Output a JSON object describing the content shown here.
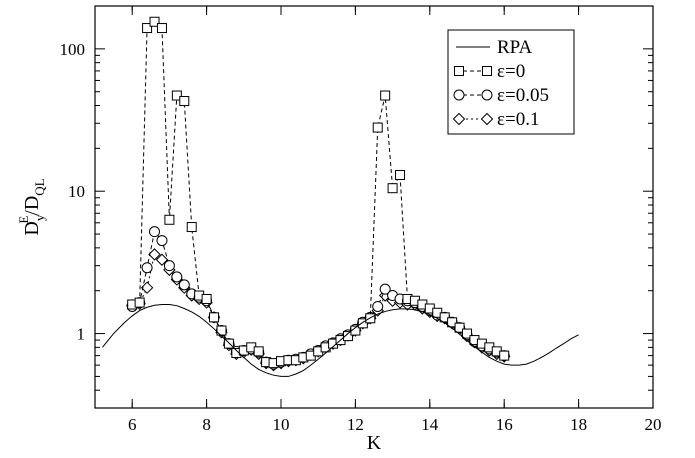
{
  "chart_data": {
    "type": "line",
    "title": "",
    "xlabel": "K",
    "ylabel": {
      "main": "D",
      "sub": "y",
      "sup": "E",
      "rest": "/D",
      "rest_sub": "QL"
    },
    "xlim": [
      5,
      20
    ],
    "ylim": [
      0.3,
      200
    ],
    "yscale": "log",
    "grid": false,
    "legend_position": "top-right",
    "x_ticks": [
      6,
      8,
      10,
      12,
      14,
      16,
      18,
      20
    ],
    "x_tick_labels": [
      "6",
      "8",
      "10",
      "12",
      "14",
      "16",
      "18",
      "20"
    ],
    "y_ticks": [
      1,
      10,
      100
    ],
    "y_tick_labels": [
      "1",
      "10",
      "100"
    ],
    "series": [
      {
        "name": "RPA",
        "marker": "none",
        "linestyle": "solid",
        "x": [
          5.2,
          5.5,
          5.8,
          6.0,
          6.2,
          6.4,
          6.6,
          6.8,
          7.0,
          7.2,
          7.4,
          7.6,
          7.8,
          8.0,
          8.2,
          8.4,
          8.6,
          8.8,
          9.0,
          9.2,
          9.4,
          9.6,
          9.8,
          10.0,
          10.2,
          10.4,
          10.6,
          10.8,
          11.0,
          11.2,
          11.4,
          11.6,
          11.8,
          12.0,
          12.2,
          12.4,
          12.6,
          12.8,
          13.0,
          13.2,
          13.4,
          13.6,
          13.8,
          14.0,
          14.2,
          14.4,
          14.6,
          14.8,
          15.0,
          15.2,
          15.4,
          15.6,
          15.8,
          16.0,
          16.2,
          16.4,
          16.6,
          16.8,
          17.0,
          17.2,
          17.4,
          17.6,
          17.8,
          18.0
        ],
        "y": [
          0.8,
          1.0,
          1.2,
          1.33,
          1.45,
          1.53,
          1.58,
          1.6,
          1.6,
          1.57,
          1.5,
          1.42,
          1.32,
          1.2,
          1.08,
          0.96,
          0.86,
          0.76,
          0.68,
          0.61,
          0.56,
          0.53,
          0.51,
          0.5,
          0.5,
          0.52,
          0.55,
          0.6,
          0.66,
          0.73,
          0.81,
          0.9,
          1.0,
          1.1,
          1.2,
          1.29,
          1.37,
          1.43,
          1.47,
          1.49,
          1.49,
          1.47,
          1.42,
          1.36,
          1.28,
          1.19,
          1.09,
          0.99,
          0.9,
          0.81,
          0.74,
          0.68,
          0.64,
          0.61,
          0.6,
          0.6,
          0.61,
          0.64,
          0.68,
          0.73,
          0.79,
          0.85,
          0.92,
          0.98
        ]
      },
      {
        "name": "ε=0",
        "marker": "square",
        "linestyle": "dashed",
        "x": [
          6.0,
          6.2,
          6.4,
          6.6,
          6.8,
          7.0,
          7.2,
          7.4,
          7.6,
          7.8,
          8.0,
          8.2,
          8.4,
          8.6,
          8.8,
          9.0,
          9.2,
          9.4,
          9.6,
          9.8,
          10.0,
          10.2,
          10.4,
          10.6,
          10.8,
          11.0,
          11.2,
          11.4,
          11.6,
          11.8,
          12.0,
          12.2,
          12.4,
          12.6,
          12.8,
          13.0,
          13.2,
          13.4,
          13.6,
          13.8,
          14.0,
          14.2,
          14.4,
          14.6,
          14.8,
          15.0,
          15.2,
          15.4,
          15.6,
          15.8,
          16.0
        ],
        "y": [
          1.6,
          1.65,
          140,
          155,
          140,
          6.3,
          47,
          43,
          5.6,
          1.85,
          1.75,
          1.3,
          1.05,
          0.85,
          0.73,
          0.76,
          0.8,
          0.75,
          0.63,
          0.62,
          0.64,
          0.65,
          0.65,
          0.68,
          0.7,
          0.75,
          0.8,
          0.85,
          0.9,
          0.96,
          1.05,
          1.18,
          1.28,
          28,
          47,
          10.5,
          13,
          1.75,
          1.7,
          1.6,
          1.5,
          1.4,
          1.3,
          1.2,
          1.1,
          1.0,
          0.9,
          0.85,
          0.8,
          0.75,
          0.7
        ]
      },
      {
        "name": "ε=0.05",
        "marker": "circle",
        "linestyle": "dashed",
        "x": [
          6.0,
          6.2,
          6.4,
          6.6,
          6.8,
          7.0,
          7.2,
          7.4,
          7.6,
          7.8,
          8.0,
          8.2,
          8.4,
          8.6,
          8.8,
          9.0,
          9.2,
          9.4,
          9.6,
          9.8,
          10.0,
          10.2,
          10.4,
          10.6,
          10.8,
          11.0,
          11.2,
          11.4,
          11.6,
          11.8,
          12.0,
          12.2,
          12.4,
          12.6,
          12.8,
          13.0,
          13.2,
          13.4,
          13.6,
          13.8,
          14.0,
          14.2,
          14.4,
          14.6,
          14.8,
          15.0,
          15.2,
          15.4,
          15.6,
          15.8,
          16.0
        ],
        "y": [
          1.55,
          1.65,
          2.9,
          5.2,
          4.5,
          3.0,
          2.5,
          2.2,
          1.9,
          1.8,
          1.7,
          1.3,
          1.05,
          0.85,
          0.75,
          0.76,
          0.78,
          0.74,
          0.63,
          0.61,
          0.63,
          0.65,
          0.66,
          0.68,
          0.72,
          0.76,
          0.82,
          0.86,
          0.92,
          0.98,
          1.07,
          1.2,
          1.3,
          1.55,
          2.05,
          1.85,
          1.75,
          1.7,
          1.65,
          1.55,
          1.45,
          1.35,
          1.3,
          1.2,
          1.1,
          0.98,
          0.88,
          0.82,
          0.78,
          0.74,
          0.7
        ]
      },
      {
        "name": "ε=0.1",
        "marker": "diamond",
        "linestyle": "dotted",
        "x": [
          6.0,
          6.2,
          6.4,
          6.6,
          6.8,
          7.0,
          7.2,
          7.4,
          7.6,
          7.8,
          8.0,
          8.2,
          8.4,
          8.6,
          8.8,
          9.0,
          9.2,
          9.4,
          9.6,
          9.8,
          10.0,
          10.2,
          10.4,
          10.6,
          10.8,
          11.0,
          11.2,
          11.4,
          11.6,
          11.8,
          12.0,
          12.2,
          12.4,
          12.6,
          12.8,
          13.0,
          13.2,
          13.4,
          13.6,
          13.8,
          14.0,
          14.2,
          14.4,
          14.6,
          14.8,
          15.0,
          15.2,
          15.4,
          15.6,
          15.8,
          16.0
        ],
        "y": [
          1.58,
          1.62,
          2.1,
          3.6,
          3.3,
          2.8,
          2.4,
          2.1,
          1.85,
          1.75,
          1.65,
          1.3,
          1.02,
          0.83,
          0.72,
          0.74,
          0.77,
          0.72,
          0.62,
          0.6,
          0.62,
          0.64,
          0.65,
          0.67,
          0.71,
          0.75,
          0.8,
          0.85,
          0.9,
          0.97,
          1.05,
          1.18,
          1.28,
          1.45,
          1.85,
          1.7,
          1.65,
          1.6,
          1.6,
          1.5,
          1.42,
          1.33,
          1.28,
          1.18,
          1.08,
          0.96,
          0.87,
          0.8,
          0.76,
          0.72,
          0.69
        ]
      }
    ]
  }
}
